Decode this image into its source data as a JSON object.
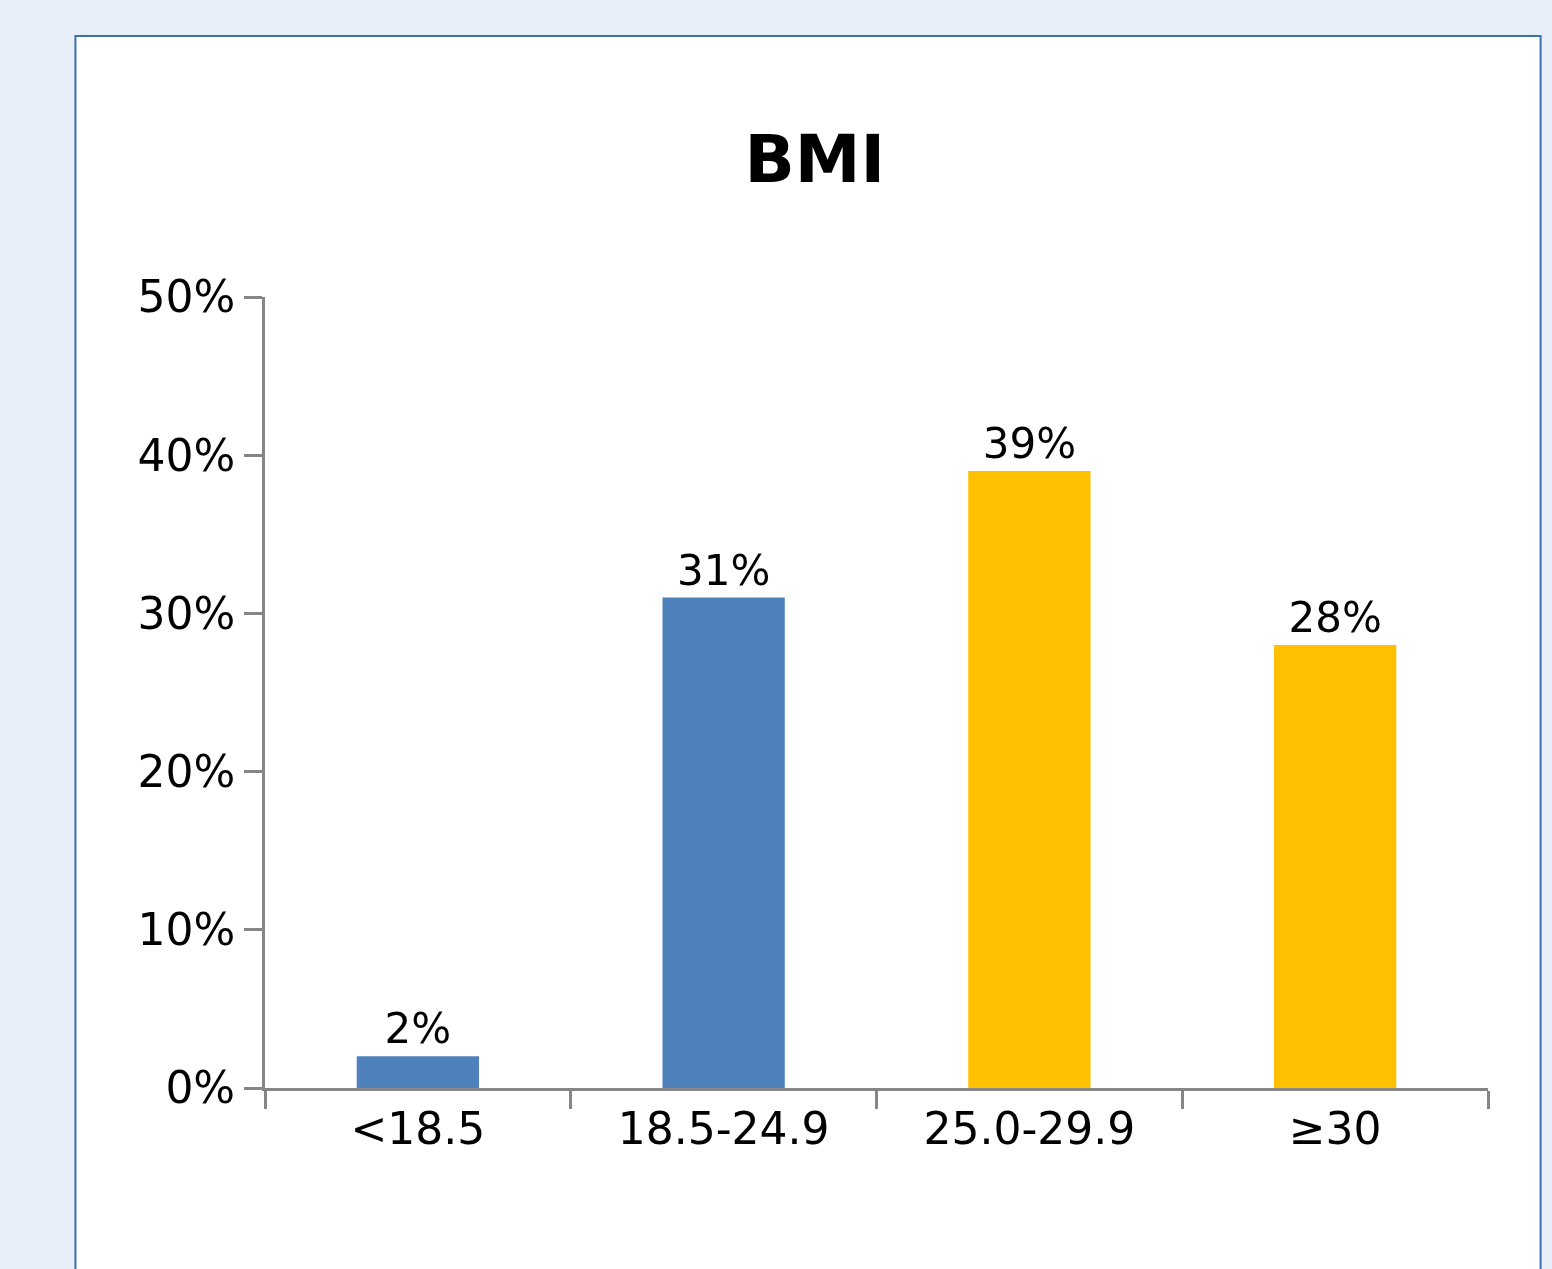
{
  "chart_data": {
    "type": "bar",
    "title": "BMI",
    "categories": [
      "<18.5",
      "18.5-24.9",
      "25.0-29.9",
      "≥30"
    ],
    "values": [
      2,
      31,
      39,
      28
    ],
    "colors": [
      "#4f81bd",
      "#4f81bd",
      "#ffc000",
      "#ffc000"
    ],
    "value_labels": [
      "2%",
      "31%",
      "39%",
      "28%"
    ],
    "ylim": [
      0,
      50
    ],
    "yticks": [
      {
        "value": 0,
        "label": "0%"
      },
      {
        "value": 10,
        "label": "10%"
      },
      {
        "value": 20,
        "label": "20%"
      },
      {
        "value": 30,
        "label": "30%"
      },
      {
        "value": 40,
        "label": "40%"
      },
      {
        "value": 50,
        "label": "50%"
      }
    ]
  }
}
